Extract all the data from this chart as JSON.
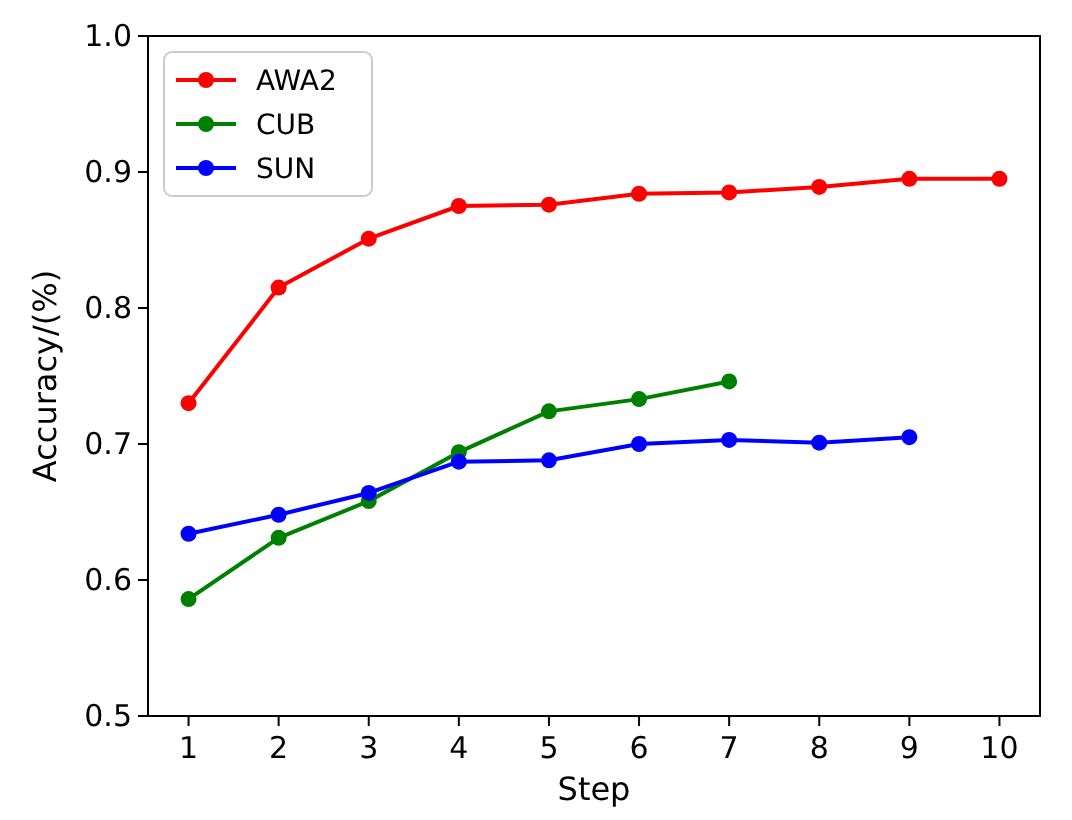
{
  "chart_data": {
    "type": "line",
    "xlabel": "Step",
    "ylabel": "Accuracy/(%)",
    "x": [
      1,
      2,
      3,
      4,
      5,
      6,
      7,
      8,
      9,
      10
    ],
    "series": [
      {
        "name": "AWA2",
        "color": "#ff0000",
        "values": [
          0.73,
          0.815,
          0.851,
          0.875,
          0.876,
          0.884,
          0.885,
          0.889,
          0.895,
          0.895
        ]
      },
      {
        "name": "CUB",
        "color": "#008000",
        "values": [
          0.586,
          0.631,
          0.658,
          0.694,
          0.724,
          0.733,
          0.746,
          null,
          null,
          null
        ]
      },
      {
        "name": "SUN",
        "color": "#0000ff",
        "values": [
          0.634,
          0.648,
          0.664,
          0.687,
          0.688,
          0.7,
          0.703,
          0.701,
          0.705,
          null
        ]
      }
    ],
    "xlim": [
      0.55,
      10.45
    ],
    "xticks": [
      1,
      2,
      3,
      4,
      5,
      6,
      7,
      8,
      9,
      10
    ],
    "ylim": [
      0.5,
      1.0
    ],
    "yticks": [
      {
        "value": 0.5,
        "label": "0.5"
      },
      {
        "value": 0.6,
        "label": "0.6"
      },
      {
        "value": 0.7,
        "label": "0.7"
      },
      {
        "value": 0.8,
        "label": "0.8"
      },
      {
        "value": 0.9,
        "label": "0.9"
      },
      {
        "value": 1.0,
        "label": "1.0"
      }
    ],
    "legend": "top left",
    "marker": "circle",
    "line_style": "solid",
    "grid": false
  }
}
